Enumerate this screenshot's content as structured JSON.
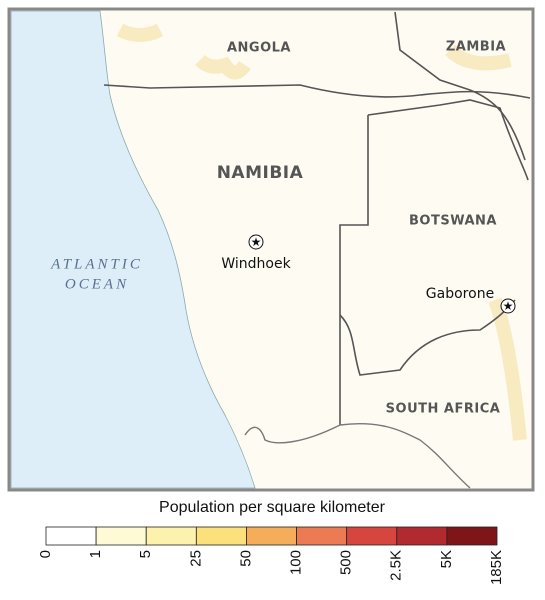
{
  "map": {
    "labels": {
      "angola": "ANGOLA",
      "zambia": "ZAMBIA",
      "namibia": "NAMIBIA",
      "botswana": "BOTSWANA",
      "south_africa": "SOUTH AFRICA",
      "ocean": [
        "ATLANTIC",
        "OCEAN"
      ],
      "windhoek": "Windhoek",
      "gaborone": "Gaborone"
    }
  },
  "legend": {
    "title": "Population per square kilometer",
    "ticks": [
      "0",
      "1",
      "5",
      "25",
      "50",
      "100",
      "500",
      "2.5K",
      "5K",
      "185K"
    ],
    "colors": [
      "#ffffff",
      "#fffad6",
      "#fdf1ae",
      "#fbe07c",
      "#f6ad5a",
      "#ec7a52",
      "#d6463e",
      "#b02a30",
      "#7e1518"
    ]
  }
}
